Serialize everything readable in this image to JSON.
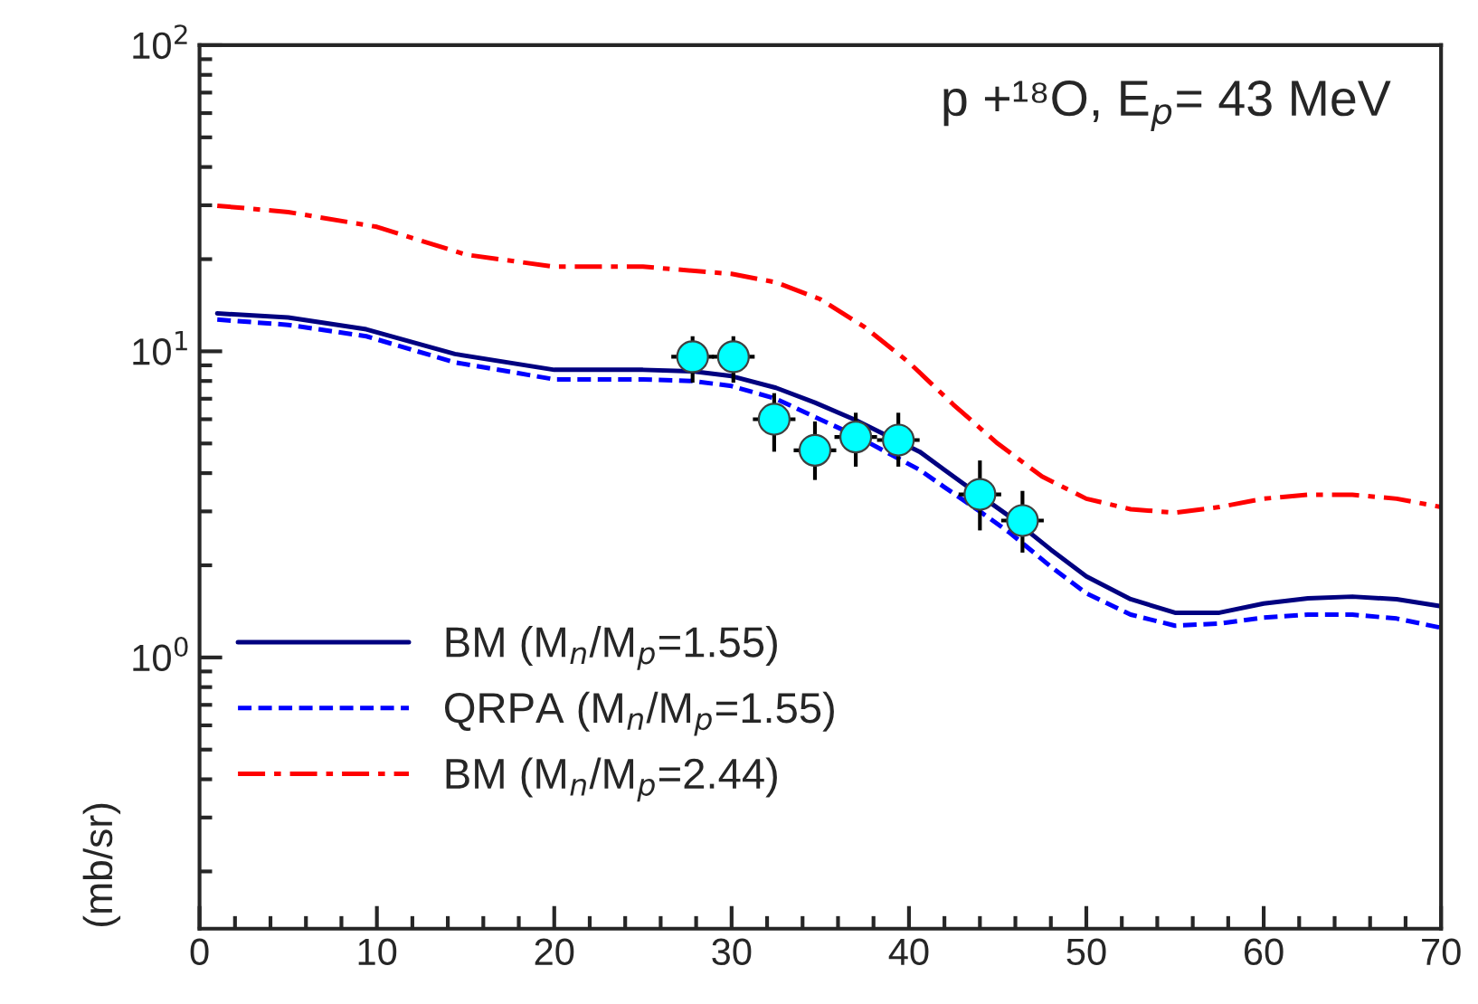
{
  "chart_data": {
    "type": "line",
    "log": "y",
    "legend": "bottom left",
    "grid": false,
    "ylabel": "(mb/sr)",
    "annotations": [
      "p +¹⁸O, E$_{p}$= 43 MeV"
    ],
    "xlim": [
      0,
      70
    ],
    "xticks": [
      0,
      10,
      20,
      30,
      40,
      50,
      60,
      70
    ],
    "ylim": [
      0.13,
      100
    ],
    "yticks": [
      {
        "value": 1,
        "label": "10$^{0}$"
      },
      {
        "value": 10,
        "label": "10$^{1}$"
      },
      {
        "value": 100,
        "label": "10$^{2}$"
      }
    ],
    "series": [
      {
        "name": "BM (M$_{n}$/M$_{p}$=1.55)",
        "line_style": "solid",
        "color": "#000080",
        "x": [
          1,
          5,
          9.4,
          14.4,
          20,
          25,
          27.8,
          30,
          32.5,
          34.7,
          37,
          40.6,
          42,
          43,
          45.7,
          48,
          50,
          52.5,
          55,
          57.5,
          60,
          62.5,
          65,
          67.5,
          70
        ],
        "values": [
          13.3,
          12.9,
          11.8,
          9.8,
          8.7,
          8.7,
          8.6,
          8.3,
          7.6,
          6.8,
          5.96,
          4.7,
          4.1,
          3.72,
          2.88,
          2.25,
          1.84,
          1.55,
          1.4,
          1.4,
          1.5,
          1.56,
          1.58,
          1.55,
          1.47
        ]
      },
      {
        "name": "QRPA (M$_{n}$/M$_{p}$=1.55)",
        "line_style": "dashed",
        "color": "#0000ff",
        "x": [
          1,
          5,
          9.4,
          14.4,
          20,
          25,
          27.8,
          30,
          32.5,
          34.7,
          37,
          40.6,
          42,
          44,
          45.7,
          48,
          50,
          52.5,
          55,
          57.5,
          60,
          62.5,
          65,
          67.5,
          70
        ],
        "values": [
          12.7,
          12.2,
          11.2,
          9.2,
          8.1,
          8.1,
          8.0,
          7.7,
          7.0,
          6.1,
          5.3,
          4.1,
          3.6,
          3.0,
          2.55,
          1.98,
          1.62,
          1.38,
          1.27,
          1.29,
          1.35,
          1.38,
          1.38,
          1.34,
          1.25
        ]
      },
      {
        "name": "BM (M$_{n}$/M$_{p}$=2.44)",
        "line_style": "dashdot",
        "color": "#ff0000",
        "x": [
          1,
          5,
          10,
          15,
          20,
          25,
          30,
          32.5,
          35,
          37.5,
          40,
          42.5,
          45,
          47.5,
          50,
          52.5,
          55,
          57.5,
          60,
          62.5,
          65,
          67.5,
          70
        ],
        "values": [
          29.9,
          28.5,
          25.5,
          20.7,
          18.9,
          18.9,
          17.9,
          16.8,
          14.8,
          12.0,
          9.2,
          6.7,
          5.0,
          3.9,
          3.3,
          3.05,
          2.97,
          3.1,
          3.3,
          3.4,
          3.4,
          3.3,
          3.1
        ]
      },
      {
        "type": "scatter",
        "marker": "circle",
        "color": "#00ffff",
        "x": [
          27.8,
          30.1,
          32.4,
          34.7,
          37.0,
          39.4,
          44.0,
          46.4
        ],
        "values": [
          9.6,
          9.6,
          6.0,
          4.75,
          5.25,
          5.13,
          3.41,
          2.8
        ],
        "errors": [
          [
            7.9,
            11.2
          ],
          [
            7.9,
            11.2
          ],
          [
            4.7,
            7.3
          ],
          [
            3.8,
            5.9
          ],
          [
            4.2,
            6.3
          ],
          [
            4.2,
            6.3
          ],
          [
            2.6,
            4.4
          ],
          [
            2.2,
            3.5
          ]
        ],
        "xerrors": [
          1.2,
          1.2,
          1.2,
          1.2,
          1.2,
          1.2,
          1.2,
          1.2
        ]
      }
    ]
  }
}
